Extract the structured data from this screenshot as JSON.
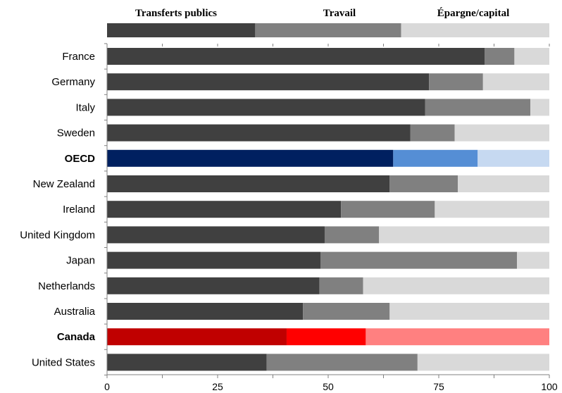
{
  "chart_data": {
    "type": "bar",
    "orientation": "horizontal",
    "stacked": true,
    "legend": {
      "placement": "top",
      "entries": [
        "Transferts publics",
        "Travail",
        "Épargne/capital"
      ],
      "colors": [
        "#404040",
        "#808080",
        "#d9d9d9"
      ]
    },
    "categories": [
      "France",
      "Germany",
      "Italy",
      "Sweden",
      "OECD",
      "New Zealand",
      "Ireland",
      "United Kingdom",
      "Japan",
      "Netherlands",
      "Australia",
      "Canada",
      "United States"
    ],
    "highlight": {
      "OECD": {
        "bold_label": true,
        "colors": [
          "#002060",
          "#558ed5",
          "#c6d9f1"
        ]
      },
      "Canada": {
        "bold_label": true,
        "colors": [
          "#c00000",
          "#ff0000",
          "#ff8080"
        ]
      }
    },
    "series": [
      {
        "name": "Transferts publics",
        "values": [
          85.4,
          72.8,
          71.9,
          68.6,
          64.7,
          63.9,
          52.9,
          49.2,
          48.3,
          48.0,
          44.3,
          40.6,
          36.1
        ]
      },
      {
        "name": "Travail",
        "values": [
          6.7,
          12.2,
          23.8,
          10.0,
          19.1,
          15.4,
          21.2,
          12.3,
          44.4,
          9.9,
          19.6,
          17.9,
          34.1
        ]
      },
      {
        "name": "Épargne/capital",
        "values": [
          7.9,
          15.0,
          4.3,
          21.4,
          16.2,
          20.7,
          25.9,
          38.5,
          7.3,
          42.1,
          36.1,
          41.5,
          29.8
        ]
      }
    ],
    "legend_bar_values": [
      33.5,
      33.0,
      33.5
    ],
    "xlim": [
      0,
      100
    ],
    "xticks": [
      "0",
      "25",
      "50",
      "75",
      "100"
    ],
    "minor_ticks_every": 12.5,
    "grid": false
  }
}
